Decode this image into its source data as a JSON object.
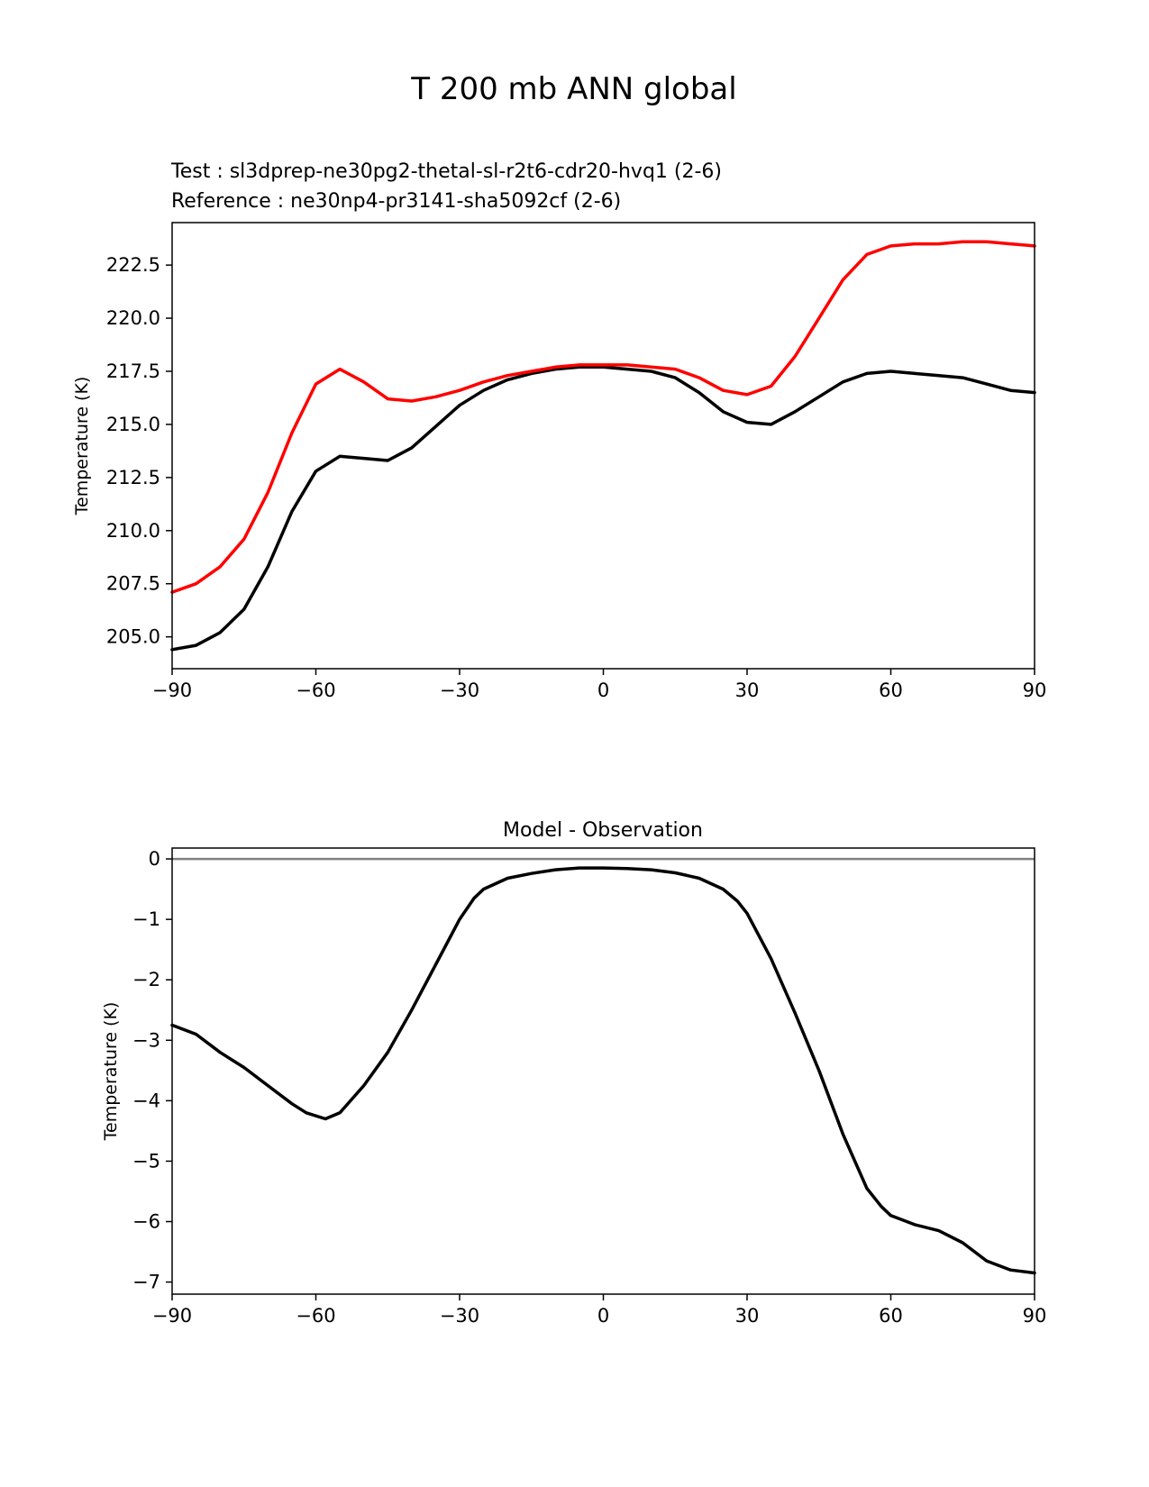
{
  "figure": {
    "suptitle": "T 200 mb ANN global"
  },
  "chart_data": [
    {
      "type": "line",
      "title_lines": [
        {
          "text": "Test : sl3dprep-ne30pg2-thetal-sl-r2t6-cdr20-hvq1 (2-6)",
          "color": "#000000"
        },
        {
          "text": "Reference : ne30np4-pr3141-sha5092cf (2-6)",
          "color": "#ff0000"
        }
      ],
      "xlabel": "",
      "ylabel": "Temperature (K)",
      "xlim": [
        -90,
        90
      ],
      "ylim": [
        203.5,
        224.5
      ],
      "xticks": [
        -90,
        -60,
        -30,
        0,
        30,
        60,
        90
      ],
      "xtick_labels": [
        "−90",
        "−60",
        "−30",
        "0",
        "30",
        "60",
        "90"
      ],
      "yticks": [
        205.0,
        207.5,
        210.0,
        212.5,
        215.0,
        217.5,
        220.0,
        222.5
      ],
      "ytick_labels": [
        "205.0",
        "207.5",
        "210.0",
        "212.5",
        "215.0",
        "217.5",
        "220.0",
        "222.5"
      ],
      "grid": false,
      "series": [
        {
          "color": "#000000",
          "x": [
            -90,
            -85,
            -80,
            -75,
            -70,
            -65,
            -60,
            -55,
            -50,
            -45,
            -40,
            -35,
            -30,
            -25,
            -20,
            -15,
            -10,
            -5,
            0,
            5,
            10,
            15,
            20,
            25,
            30,
            35,
            40,
            45,
            50,
            55,
            60,
            65,
            70,
            75,
            80,
            85,
            90
          ],
          "y": [
            204.4,
            204.6,
            205.2,
            206.3,
            208.3,
            210.9,
            212.8,
            213.5,
            213.4,
            213.3,
            213.9,
            214.9,
            215.9,
            216.6,
            217.1,
            217.4,
            217.6,
            217.7,
            217.7,
            217.6,
            217.5,
            217.2,
            216.5,
            215.6,
            215.1,
            215.0,
            215.6,
            216.3,
            217.0,
            217.4,
            217.5,
            217.4,
            217.3,
            217.2,
            216.9,
            216.6,
            216.5
          ]
        },
        {
          "color": "#ff0000",
          "x": [
            -90,
            -85,
            -80,
            -75,
            -70,
            -65,
            -60,
            -55,
            -50,
            -45,
            -40,
            -35,
            -30,
            -25,
            -20,
            -15,
            -10,
            -5,
            0,
            5,
            10,
            15,
            20,
            25,
            30,
            35,
            40,
            45,
            50,
            55,
            60,
            65,
            70,
            75,
            80,
            85,
            90
          ],
          "y": [
            207.1,
            207.5,
            208.3,
            209.6,
            211.8,
            214.6,
            216.9,
            217.6,
            217.0,
            216.2,
            216.1,
            216.3,
            216.6,
            217.0,
            217.3,
            217.5,
            217.7,
            217.8,
            217.8,
            217.8,
            217.7,
            217.6,
            217.2,
            216.6,
            216.4,
            216.8,
            218.2,
            220.0,
            221.8,
            223.0,
            223.4,
            223.5,
            223.5,
            223.6,
            223.6,
            223.5,
            223.4
          ]
        }
      ]
    },
    {
      "type": "line",
      "title": "Model - Observation",
      "xlabel": "",
      "ylabel": "Temperature (K)",
      "xlim": [
        -90,
        90
      ],
      "ylim": [
        -7.2,
        0.18
      ],
      "xticks": [
        -90,
        -60,
        -30,
        0,
        30,
        60,
        90
      ],
      "xtick_labels": [
        "−90",
        "−60",
        "−30",
        "0",
        "30",
        "60",
        "90"
      ],
      "yticks": [
        0,
        -1,
        -2,
        -3,
        -4,
        -5,
        -6,
        -7
      ],
      "ytick_labels": [
        "0",
        "−1",
        "−2",
        "−3",
        "−4",
        "−5",
        "−6",
        "−7"
      ],
      "grid": false,
      "zero_line": {
        "y": 0,
        "color": "#808080"
      },
      "series": [
        {
          "color": "#000000",
          "x": [
            -90,
            -85,
            -80,
            -75,
            -70,
            -65,
            -62,
            -58,
            -55,
            -50,
            -45,
            -40,
            -35,
            -30,
            -27,
            -25,
            -20,
            -15,
            -10,
            -5,
            0,
            5,
            10,
            15,
            20,
            25,
            28,
            30,
            35,
            40,
            45,
            50,
            55,
            58,
            60,
            65,
            70,
            75,
            80,
            85,
            90
          ],
          "y": [
            -2.75,
            -2.9,
            -3.2,
            -3.45,
            -3.75,
            -4.05,
            -4.2,
            -4.3,
            -4.2,
            -3.75,
            -3.2,
            -2.5,
            -1.75,
            -1.0,
            -0.65,
            -0.5,
            -0.32,
            -0.24,
            -0.18,
            -0.15,
            -0.15,
            -0.16,
            -0.18,
            -0.23,
            -0.32,
            -0.5,
            -0.7,
            -0.9,
            -1.65,
            -2.55,
            -3.5,
            -4.55,
            -5.45,
            -5.75,
            -5.9,
            -6.05,
            -6.15,
            -6.35,
            -6.65,
            -6.8,
            -6.85
          ]
        }
      ]
    }
  ]
}
